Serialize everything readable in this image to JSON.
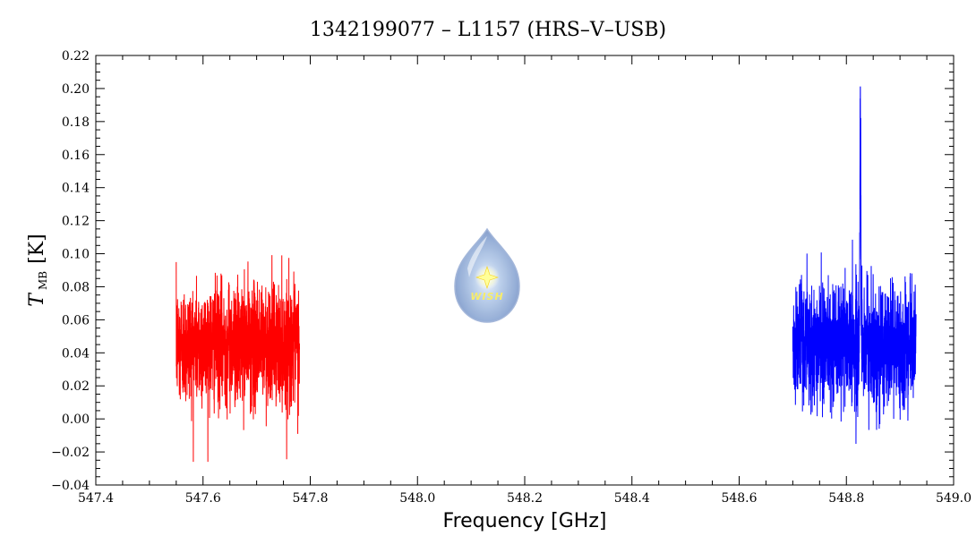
{
  "chart_data": {
    "type": "line",
    "title": "1342199077 – L1157 (HRS–V–USB)",
    "xlabel": "Frequency [GHz]",
    "ylabel_main": "T",
    "ylabel_sub": "MB",
    "ylabel_unit": "[K]",
    "xlim": [
      547.4,
      549.0
    ],
    "ylim": [
      -0.04,
      0.22
    ],
    "x_ticks": [
      547.4,
      547.6,
      547.8,
      548.0,
      548.2,
      548.4,
      548.6,
      548.8,
      549.0
    ],
    "x_tick_labels": [
      "547.4",
      "547.6",
      "547.8",
      "548.0",
      "548.2",
      "548.4",
      "548.6",
      "548.8",
      "549.0"
    ],
    "y_ticks": [
      -0.04,
      -0.02,
      0.0,
      0.02,
      0.04,
      0.06,
      0.08,
      0.1,
      0.12,
      0.14,
      0.16,
      0.18,
      0.2,
      0.22
    ],
    "y_tick_labels": [
      "−0.04",
      "−0.02",
      "0.00",
      "0.02",
      "0.04",
      "0.06",
      "0.08",
      "0.10",
      "0.12",
      "0.14",
      "0.16",
      "0.18",
      "0.20",
      "0.22"
    ],
    "grid": false,
    "series": [
      {
        "color": "#ff0000",
        "x_range": [
          547.55,
          547.78
        ],
        "mean": 0.045,
        "noise_sigma": 0.018,
        "max": 0.123,
        "min": -0.026
      },
      {
        "color": "#0000ff",
        "x_range": [
          548.7,
          548.93
        ],
        "mean": 0.045,
        "noise_sigma": 0.018,
        "max": 0.201,
        "min": -0.025,
        "peak": {
          "x": 548.826,
          "y": 0.201
        }
      }
    ]
  },
  "logo": {
    "name": "wish-logo",
    "text": "WISH"
  }
}
